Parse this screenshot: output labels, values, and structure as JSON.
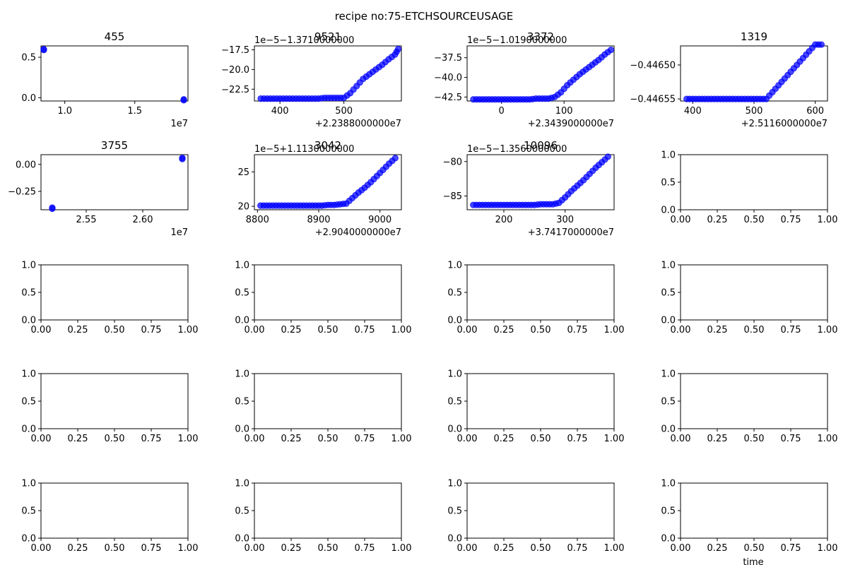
{
  "figure": {
    "suptitle": "recipe no:75-ETCHSOURCEUSAGE",
    "xlabel": "time"
  },
  "chart_data": [
    {
      "type": "scatter",
      "title": "455",
      "color": "#0000ff",
      "xlim": [
        8300000.0,
        18800000.0
      ],
      "ylim": [
        -0.04,
        0.64
      ],
      "xticks": [
        {
          "v": 10000000.0,
          "label": "1.0"
        },
        {
          "v": 15000000.0,
          "label": "1.5"
        }
      ],
      "yticks": [
        {
          "v": 0.0,
          "label": "0.0"
        },
        {
          "v": 0.5,
          "label": "0.5"
        }
      ],
      "x_offset_label": "1e7",
      "y_offset_label": "",
      "x": [
        8500000.0,
        8500000.0,
        18500000.0,
        18500000.0
      ],
      "y": [
        0.6,
        0.59,
        -0.02,
        -0.03
      ]
    },
    {
      "type": "scatter",
      "title": "9521",
      "color": "#0000ff",
      "ramp": true,
      "xlim": [
        360,
        590
      ],
      "ylim": [
        -24.0,
        -17.0
      ],
      "xticks": [
        {
          "v": 400,
          "label": "400"
        },
        {
          "v": 500,
          "label": "500"
        }
      ],
      "yticks": [
        {
          "v": -22.5,
          "label": "−22.5"
        },
        {
          "v": -20.0,
          "label": "−20.0"
        },
        {
          "v": -17.5,
          "label": "−17.5"
        }
      ],
      "x_offset_label": "+2.2388000000e7",
      "y_offset_label": "1e−5−1.3710000000",
      "x": [
        370,
        380,
        390,
        400,
        410,
        420,
        430,
        440,
        450,
        460,
        470,
        480,
        490,
        500,
        510,
        520,
        530,
        540,
        550,
        560,
        570,
        580,
        585
      ],
      "y": [
        -23.7,
        -23.7,
        -23.7,
        -23.7,
        -23.7,
        -23.7,
        -23.7,
        -23.7,
        -23.7,
        -23.7,
        -23.6,
        -23.6,
        -23.6,
        -23.6,
        -23.0,
        -22.1,
        -21.2,
        -20.6,
        -20.0,
        -19.4,
        -18.7,
        -18.1,
        -17.4
      ]
    },
    {
      "type": "scatter",
      "title": "3372",
      "color": "#0000ff",
      "ramp": true,
      "xlim": [
        -55,
        180
      ],
      "ylim": [
        -43.0,
        -36.0
      ],
      "xticks": [
        {
          "v": 0,
          "label": "0"
        },
        {
          "v": 100,
          "label": "100"
        }
      ],
      "yticks": [
        {
          "v": -42.5,
          "label": "−42.5"
        },
        {
          "v": -40.0,
          "label": "−40.0"
        },
        {
          "v": -37.5,
          "label": "−37.5"
        }
      ],
      "x_offset_label": "+2.3439000000e7",
      "y_offset_label": "1e−5−1.0190000000",
      "x": [
        -45,
        -35,
        -25,
        -15,
        -5,
        5,
        15,
        25,
        35,
        45,
        55,
        65,
        75,
        85,
        95,
        105,
        115,
        125,
        135,
        145,
        155,
        165,
        175
      ],
      "y": [
        -42.8,
        -42.8,
        -42.8,
        -42.8,
        -42.8,
        -42.8,
        -42.8,
        -42.8,
        -42.8,
        -42.8,
        -42.7,
        -42.7,
        -42.7,
        -42.5,
        -41.9,
        -41.0,
        -40.3,
        -39.6,
        -39.0,
        -38.4,
        -37.8,
        -37.1,
        -36.5
      ]
    },
    {
      "type": "scatter",
      "title": "1319",
      "color": "#0000ff",
      "ramp": true,
      "xlim": [
        380,
        620
      ],
      "ylim": [
        -0.446553,
        -0.446472
      ],
      "xticks": [
        {
          "v": 400,
          "label": "400"
        },
        {
          "v": 500,
          "label": "500"
        },
        {
          "v": 600,
          "label": "600"
        }
      ],
      "yticks": [
        {
          "v": -0.44655,
          "label": "−0.44655"
        },
        {
          "v": -0.4465,
          "label": "−0.44650"
        }
      ],
      "x_offset_label": "+2.5116000000e7",
      "y_offset_label": "",
      "x": [
        390,
        400,
        410,
        420,
        430,
        440,
        450,
        460,
        470,
        480,
        490,
        500,
        510,
        520,
        530,
        540,
        550,
        560,
        570,
        580,
        590,
        600,
        610
      ],
      "y": [
        -0.44655,
        -0.44655,
        -0.44655,
        -0.44655,
        -0.44655,
        -0.44655,
        -0.44655,
        -0.44655,
        -0.44655,
        -0.44655,
        -0.44655,
        -0.44655,
        -0.44655,
        -0.44655,
        -0.44654,
        -0.44653,
        -0.44652,
        -0.44651,
        -0.4465,
        -0.44649,
        -0.44648,
        -0.44647,
        -0.44647
      ]
    },
    {
      "type": "scatter",
      "title": "3755",
      "color": "#0000ff",
      "xlim": [
        25100000.0,
        26400000.0
      ],
      "ylim": [
        -0.42,
        0.09
      ],
      "xticks": [
        {
          "v": 25500000.0,
          "label": "2.55"
        },
        {
          "v": 26000000.0,
          "label": "2.60"
        }
      ],
      "yticks": [
        {
          "v": -0.25,
          "label": "−0.25"
        },
        {
          "v": 0.0,
          "label": "0.00"
        }
      ],
      "x_offset_label": "1e7",
      "y_offset_label": "",
      "x": [
        25200000.0,
        25200000.0,
        26350000.0,
        26350000.0
      ],
      "y": [
        -0.4,
        -0.41,
        0.06,
        0.05
      ]
    },
    {
      "type": "scatter",
      "title": "3042",
      "color": "#0000ff",
      "ramp": true,
      "xlim": [
        8795,
        9035
      ],
      "ylim": [
        19.5,
        27.5
      ],
      "xticks": [
        {
          "v": 8800,
          "label": "8800"
        },
        {
          "v": 8900,
          "label": "8900"
        },
        {
          "v": 9000,
          "label": "9000"
        }
      ],
      "yticks": [
        {
          "v": 20,
          "label": "20"
        },
        {
          "v": 25,
          "label": "25"
        }
      ],
      "x_offset_label": "+2.9040000000e7",
      "y_offset_label": "1e−5+1.1130000000",
      "x": [
        8805,
        8815,
        8825,
        8835,
        8845,
        8855,
        8865,
        8875,
        8885,
        8895,
        8905,
        8915,
        8925,
        8935,
        8945,
        8955,
        8965,
        8975,
        8985,
        8995,
        9005,
        9015,
        9025
      ],
      "y": [
        20.1,
        20.1,
        20.1,
        20.1,
        20.1,
        20.1,
        20.1,
        20.1,
        20.1,
        20.1,
        20.1,
        20.2,
        20.2,
        20.3,
        20.4,
        21.2,
        22.0,
        22.7,
        23.5,
        24.4,
        25.3,
        26.2,
        27.0
      ]
    },
    {
      "type": "scatter",
      "title": "10096",
      "color": "#0000ff",
      "ramp": true,
      "xlim": [
        140,
        380
      ],
      "ylim": [
        -87.0,
        -79.0
      ],
      "xticks": [
        {
          "v": 200,
          "label": "200"
        },
        {
          "v": 300,
          "label": "300"
        }
      ],
      "yticks": [
        {
          "v": -85,
          "label": "−85"
        },
        {
          "v": -80,
          "label": "−80"
        }
      ],
      "x_offset_label": "+3.7417000000e7",
      "y_offset_label": "1e−5−1.3560000000",
      "x": [
        150,
        160,
        170,
        180,
        190,
        200,
        210,
        220,
        230,
        240,
        250,
        260,
        270,
        280,
        290,
        300,
        310,
        320,
        330,
        340,
        350,
        360,
        370
      ],
      "y": [
        -86.3,
        -86.3,
        -86.3,
        -86.3,
        -86.3,
        -86.3,
        -86.3,
        -86.3,
        -86.3,
        -86.3,
        -86.3,
        -86.2,
        -86.2,
        -86.2,
        -86.0,
        -85.2,
        -84.3,
        -83.5,
        -82.7,
        -81.8,
        -80.9,
        -80.1,
        -79.3
      ]
    },
    {
      "type": "empty",
      "xlim": [
        0,
        1
      ],
      "ylim": [
        0,
        1
      ],
      "xticks": [
        {
          "v": 0,
          "label": "0.00"
        },
        {
          "v": 0.25,
          "label": "0.25"
        },
        {
          "v": 0.5,
          "label": "0.50"
        },
        {
          "v": 0.75,
          "label": "0.75"
        },
        {
          "v": 1,
          "label": "1.00"
        }
      ],
      "yticks": [
        {
          "v": 0,
          "label": "0.0"
        },
        {
          "v": 0.5,
          "label": "0.5"
        },
        {
          "v": 1,
          "label": "1.0"
        }
      ]
    },
    {
      "type": "empty",
      "xlim": [
        0,
        1
      ],
      "ylim": [
        0,
        1
      ],
      "xticks": [
        {
          "v": 0,
          "label": "0.00"
        },
        {
          "v": 0.25,
          "label": "0.25"
        },
        {
          "v": 0.5,
          "label": "0.50"
        },
        {
          "v": 0.75,
          "label": "0.75"
        },
        {
          "v": 1,
          "label": "1.00"
        }
      ],
      "yticks": [
        {
          "v": 0,
          "label": "0.0"
        },
        {
          "v": 0.5,
          "label": "0.5"
        },
        {
          "v": 1,
          "label": "1.0"
        }
      ]
    },
    {
      "type": "empty",
      "xlim": [
        0,
        1
      ],
      "ylim": [
        0,
        1
      ],
      "xticks": [
        {
          "v": 0,
          "label": "0.00"
        },
        {
          "v": 0.25,
          "label": "0.25"
        },
        {
          "v": 0.5,
          "label": "0.50"
        },
        {
          "v": 0.75,
          "label": "0.75"
        },
        {
          "v": 1,
          "label": "1.00"
        }
      ],
      "yticks": [
        {
          "v": 0,
          "label": "0.0"
        },
        {
          "v": 0.5,
          "label": "0.5"
        },
        {
          "v": 1,
          "label": "1.0"
        }
      ]
    },
    {
      "type": "empty",
      "xlim": [
        0,
        1
      ],
      "ylim": [
        0,
        1
      ],
      "xticks": [
        {
          "v": 0,
          "label": "0.00"
        },
        {
          "v": 0.25,
          "label": "0.25"
        },
        {
          "v": 0.5,
          "label": "0.50"
        },
        {
          "v": 0.75,
          "label": "0.75"
        },
        {
          "v": 1,
          "label": "1.00"
        }
      ],
      "yticks": [
        {
          "v": 0,
          "label": "0.0"
        },
        {
          "v": 0.5,
          "label": "0.5"
        },
        {
          "v": 1,
          "label": "1.0"
        }
      ]
    },
    {
      "type": "empty",
      "xlim": [
        0,
        1
      ],
      "ylim": [
        0,
        1
      ],
      "xticks": [
        {
          "v": 0,
          "label": "0.00"
        },
        {
          "v": 0.25,
          "label": "0.25"
        },
        {
          "v": 0.5,
          "label": "0.50"
        },
        {
          "v": 0.75,
          "label": "0.75"
        },
        {
          "v": 1,
          "label": "1.00"
        }
      ],
      "yticks": [
        {
          "v": 0,
          "label": "0.0"
        },
        {
          "v": 0.5,
          "label": "0.5"
        },
        {
          "v": 1,
          "label": "1.0"
        }
      ]
    },
    {
      "type": "empty",
      "xlim": [
        0,
        1
      ],
      "ylim": [
        0,
        1
      ],
      "xticks": [
        {
          "v": 0,
          "label": "0.00"
        },
        {
          "v": 0.25,
          "label": "0.25"
        },
        {
          "v": 0.5,
          "label": "0.50"
        },
        {
          "v": 0.75,
          "label": "0.75"
        },
        {
          "v": 1,
          "label": "1.00"
        }
      ],
      "yticks": [
        {
          "v": 0,
          "label": "0.0"
        },
        {
          "v": 0.5,
          "label": "0.5"
        },
        {
          "v": 1,
          "label": "1.0"
        }
      ]
    },
    {
      "type": "empty",
      "xlim": [
        0,
        1
      ],
      "ylim": [
        0,
        1
      ],
      "xticks": [
        {
          "v": 0,
          "label": "0.00"
        },
        {
          "v": 0.25,
          "label": "0.25"
        },
        {
          "v": 0.5,
          "label": "0.50"
        },
        {
          "v": 0.75,
          "label": "0.75"
        },
        {
          "v": 1,
          "label": "1.00"
        }
      ],
      "yticks": [
        {
          "v": 0,
          "label": "0.0"
        },
        {
          "v": 0.5,
          "label": "0.5"
        },
        {
          "v": 1,
          "label": "1.0"
        }
      ]
    },
    {
      "type": "empty",
      "xlim": [
        0,
        1
      ],
      "ylim": [
        0,
        1
      ],
      "xticks": [
        {
          "v": 0,
          "label": "0.00"
        },
        {
          "v": 0.25,
          "label": "0.25"
        },
        {
          "v": 0.5,
          "label": "0.50"
        },
        {
          "v": 0.75,
          "label": "0.75"
        },
        {
          "v": 1,
          "label": "1.00"
        }
      ],
      "yticks": [
        {
          "v": 0,
          "label": "0.0"
        },
        {
          "v": 0.5,
          "label": "0.5"
        },
        {
          "v": 1,
          "label": "1.0"
        }
      ]
    },
    {
      "type": "empty",
      "xlim": [
        0,
        1
      ],
      "ylim": [
        0,
        1
      ],
      "xticks": [
        {
          "v": 0,
          "label": "0.00"
        },
        {
          "v": 0.25,
          "label": "0.25"
        },
        {
          "v": 0.5,
          "label": "0.50"
        },
        {
          "v": 0.75,
          "label": "0.75"
        },
        {
          "v": 1,
          "label": "1.00"
        }
      ],
      "yticks": [
        {
          "v": 0,
          "label": "0.0"
        },
        {
          "v": 0.5,
          "label": "0.5"
        },
        {
          "v": 1,
          "label": "1.0"
        }
      ]
    },
    {
      "type": "empty",
      "xlim": [
        0,
        1
      ],
      "ylim": [
        0,
        1
      ],
      "xticks": [
        {
          "v": 0,
          "label": "0.00"
        },
        {
          "v": 0.25,
          "label": "0.25"
        },
        {
          "v": 0.5,
          "label": "0.50"
        },
        {
          "v": 0.75,
          "label": "0.75"
        },
        {
          "v": 1,
          "label": "1.00"
        }
      ],
      "yticks": [
        {
          "v": 0,
          "label": "0.0"
        },
        {
          "v": 0.5,
          "label": "0.5"
        },
        {
          "v": 1,
          "label": "1.0"
        }
      ]
    },
    {
      "type": "empty",
      "xlim": [
        0,
        1
      ],
      "ylim": [
        0,
        1
      ],
      "xticks": [
        {
          "v": 0,
          "label": "0.00"
        },
        {
          "v": 0.25,
          "label": "0.25"
        },
        {
          "v": 0.5,
          "label": "0.50"
        },
        {
          "v": 0.75,
          "label": "0.75"
        },
        {
          "v": 1,
          "label": "1.00"
        }
      ],
      "yticks": [
        {
          "v": 0,
          "label": "0.0"
        },
        {
          "v": 0.5,
          "label": "0.5"
        },
        {
          "v": 1,
          "label": "1.0"
        }
      ]
    },
    {
      "type": "empty",
      "xlim": [
        0,
        1
      ],
      "ylim": [
        0,
        1
      ],
      "xticks": [
        {
          "v": 0,
          "label": "0.00"
        },
        {
          "v": 0.25,
          "label": "0.25"
        },
        {
          "v": 0.5,
          "label": "0.50"
        },
        {
          "v": 0.75,
          "label": "0.75"
        },
        {
          "v": 1,
          "label": "1.00"
        }
      ],
      "yticks": [
        {
          "v": 0,
          "label": "0.0"
        },
        {
          "v": 0.5,
          "label": "0.5"
        },
        {
          "v": 1,
          "label": "1.0"
        }
      ]
    },
    {
      "type": "empty",
      "xlim": [
        0,
        1
      ],
      "ylim": [
        0,
        1
      ],
      "xticks": [
        {
          "v": 0,
          "label": "0.00"
        },
        {
          "v": 0.25,
          "label": "0.25"
        },
        {
          "v": 0.5,
          "label": "0.50"
        },
        {
          "v": 0.75,
          "label": "0.75"
        },
        {
          "v": 1,
          "label": "1.00"
        }
      ],
      "yticks": [
        {
          "v": 0,
          "label": "0.0"
        },
        {
          "v": 0.5,
          "label": "0.5"
        },
        {
          "v": 1,
          "label": "1.0"
        }
      ]
    }
  ]
}
